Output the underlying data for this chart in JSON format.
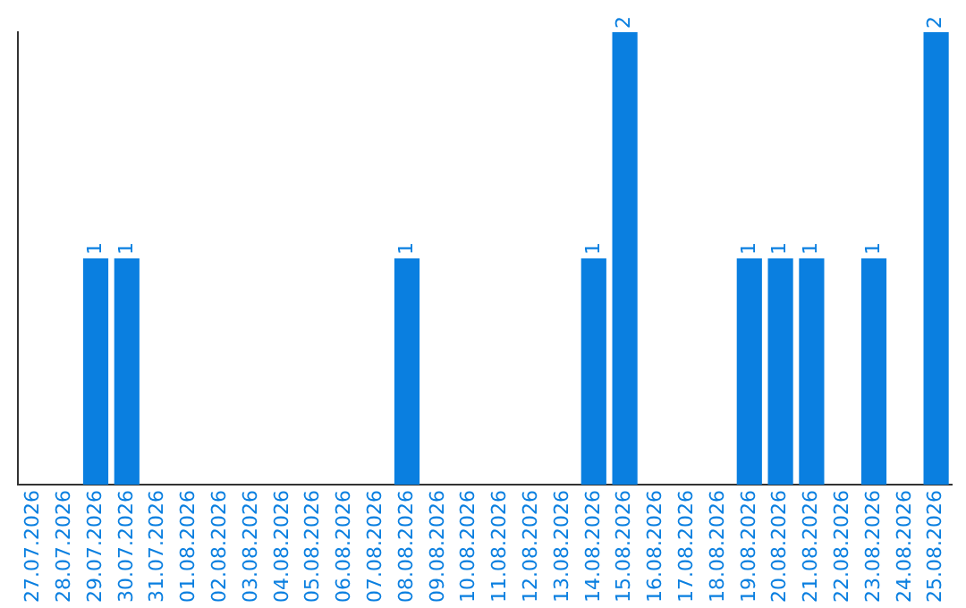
{
  "chart_data": {
    "type": "bar",
    "categories": [
      "27.07.2026",
      "28.07.2026",
      "29.07.2026",
      "30.07.2026",
      "31.07.2026",
      "01.08.2026",
      "02.08.2026",
      "03.08.2026",
      "04.08.2026",
      "05.08.2026",
      "06.08.2026",
      "07.08.2026",
      "08.08.2026",
      "09.08.2026",
      "10.08.2026",
      "11.08.2026",
      "12.08.2026",
      "13.08.2026",
      "14.08.2026",
      "15.08.2026",
      "16.08.2026",
      "17.08.2026",
      "18.08.2026",
      "19.08.2026",
      "20.08.2026",
      "21.08.2026",
      "22.08.2026",
      "23.08.2026",
      "24.08.2026",
      "25.08.2026"
    ],
    "values": [
      0,
      0,
      1,
      1,
      0,
      0,
      0,
      0,
      0,
      0,
      0,
      0,
      1,
      0,
      0,
      0,
      0,
      0,
      1,
      2,
      0,
      0,
      0,
      1,
      1,
      1,
      0,
      1,
      0,
      2
    ],
    "value_labels": [
      null,
      null,
      "1",
      "1",
      null,
      null,
      null,
      null,
      null,
      null,
      null,
      null,
      "1",
      null,
      null,
      null,
      null,
      null,
      "1",
      "2",
      null,
      null,
      null,
      "1",
      "1",
      "1",
      null,
      "1",
      null,
      "2"
    ],
    "color": "#0a7fe0",
    "grid": false,
    "legend": false
  }
}
